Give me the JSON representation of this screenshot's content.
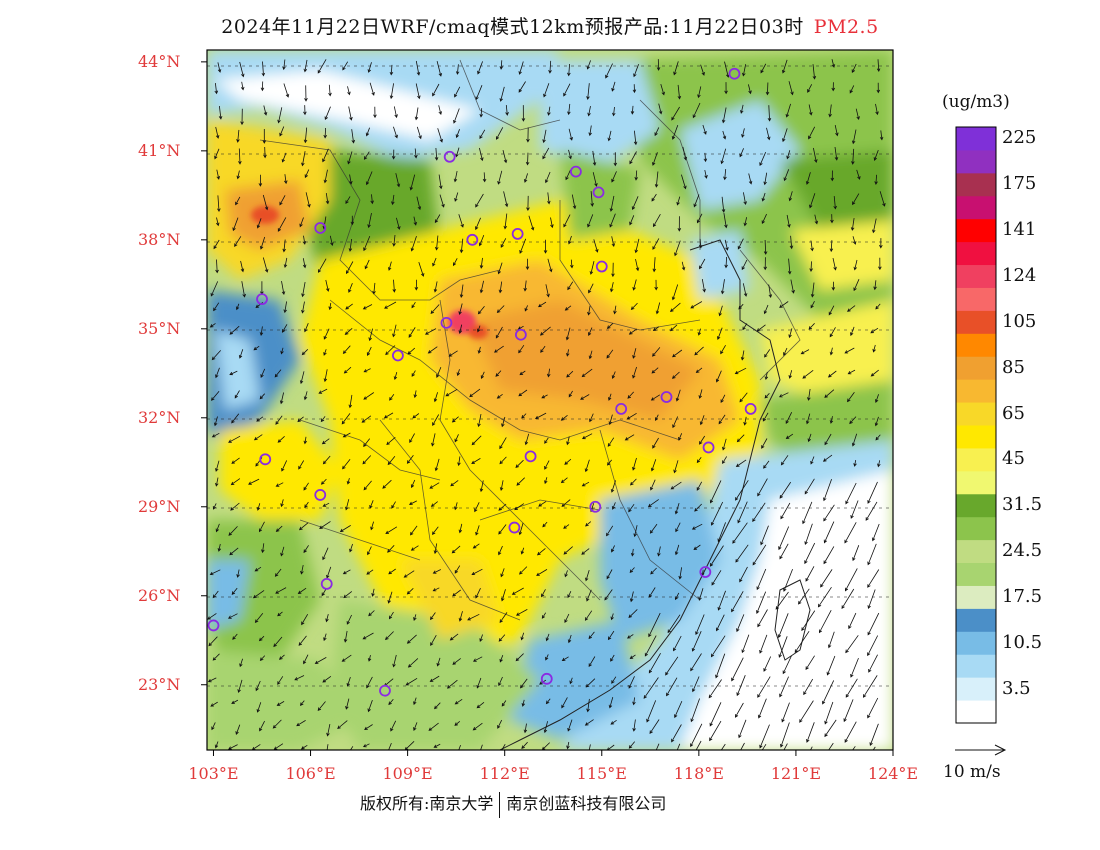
{
  "title": {
    "main": "2024年11月22日WRF/cmaq模式12km预报产品:11月22日03时",
    "pollutant": "PM2.5"
  },
  "map": {
    "lon_range": [
      102.8,
      124.0
    ],
    "lat_range": [
      20.8,
      44.4
    ],
    "lat_ticks": [
      "44°N",
      "41°N",
      "38°N",
      "35°N",
      "32°N",
      "29°N",
      "26°N",
      "23°N"
    ],
    "lat_values": [
      44,
      41,
      38,
      35,
      32,
      29,
      26,
      23
    ],
    "lon_ticks": [
      "103°E",
      "106°E",
      "109°E",
      "112°E",
      "115°E",
      "118°E",
      "121°E",
      "124°E"
    ],
    "lon_values": [
      103,
      106,
      109,
      112,
      115,
      118,
      121,
      124
    ],
    "stations": [
      {
        "lon": 119.1,
        "lat": 43.6
      },
      {
        "lon": 110.3,
        "lat": 40.8
      },
      {
        "lon": 114.2,
        "lat": 40.3
      },
      {
        "lon": 114.9,
        "lat": 39.6
      },
      {
        "lon": 106.3,
        "lat": 38.4
      },
      {
        "lon": 111.0,
        "lat": 38.0
      },
      {
        "lon": 112.4,
        "lat": 38.2
      },
      {
        "lon": 115.0,
        "lat": 37.1
      },
      {
        "lon": 104.5,
        "lat": 36.0
      },
      {
        "lon": 110.2,
        "lat": 35.2
      },
      {
        "lon": 112.5,
        "lat": 34.8
      },
      {
        "lon": 108.7,
        "lat": 34.1
      },
      {
        "lon": 117.0,
        "lat": 32.7
      },
      {
        "lon": 115.6,
        "lat": 32.3
      },
      {
        "lon": 119.6,
        "lat": 32.3
      },
      {
        "lon": 104.6,
        "lat": 30.6
      },
      {
        "lon": 112.8,
        "lat": 30.7
      },
      {
        "lon": 118.3,
        "lat": 31.0
      },
      {
        "lon": 106.3,
        "lat": 29.4
      },
      {
        "lon": 114.8,
        "lat": 29.0
      },
      {
        "lon": 112.3,
        "lat": 28.3
      },
      {
        "lon": 118.2,
        "lat": 26.8
      },
      {
        "lon": 106.5,
        "lat": 26.4
      },
      {
        "lon": 103.0,
        "lat": 25.0
      },
      {
        "lon": 108.3,
        "lat": 22.8
      },
      {
        "lon": 113.3,
        "lat": 23.2
      }
    ]
  },
  "colorbar": {
    "unit": "(ug/m3)",
    "colors": [
      "#ffffff",
      "#d8f0fa",
      "#a8daf4",
      "#78bce6",
      "#4b8fc8",
      "#dcecc0",
      "#a8d470",
      "#c0dc82",
      "#8cc44c",
      "#68a82c",
      "#f0f870",
      "#f8f050",
      "#ffe800",
      "#f8d828",
      "#f8b830",
      "#f0a030",
      "#ff8800",
      "#e85028",
      "#f86868",
      "#f04060",
      "#f01040",
      "#ff0000",
      "#c81070",
      "#a83050",
      "#9030c0",
      "#7f30d8"
    ],
    "labels": [
      "3.5",
      "10.5",
      "17.5",
      "24.5",
      "31.5",
      "45",
      "65",
      "85",
      "105",
      "124",
      "141",
      "175",
      "225"
    ],
    "label_index": [
      1,
      3,
      5,
      7,
      9,
      11,
      13,
      15,
      17,
      19,
      21,
      23,
      25
    ]
  },
  "wind_reference": "10 m/s",
  "credit": {
    "left": "版权所有:南京大学",
    "right": "南京创蓝科技有限公司"
  }
}
